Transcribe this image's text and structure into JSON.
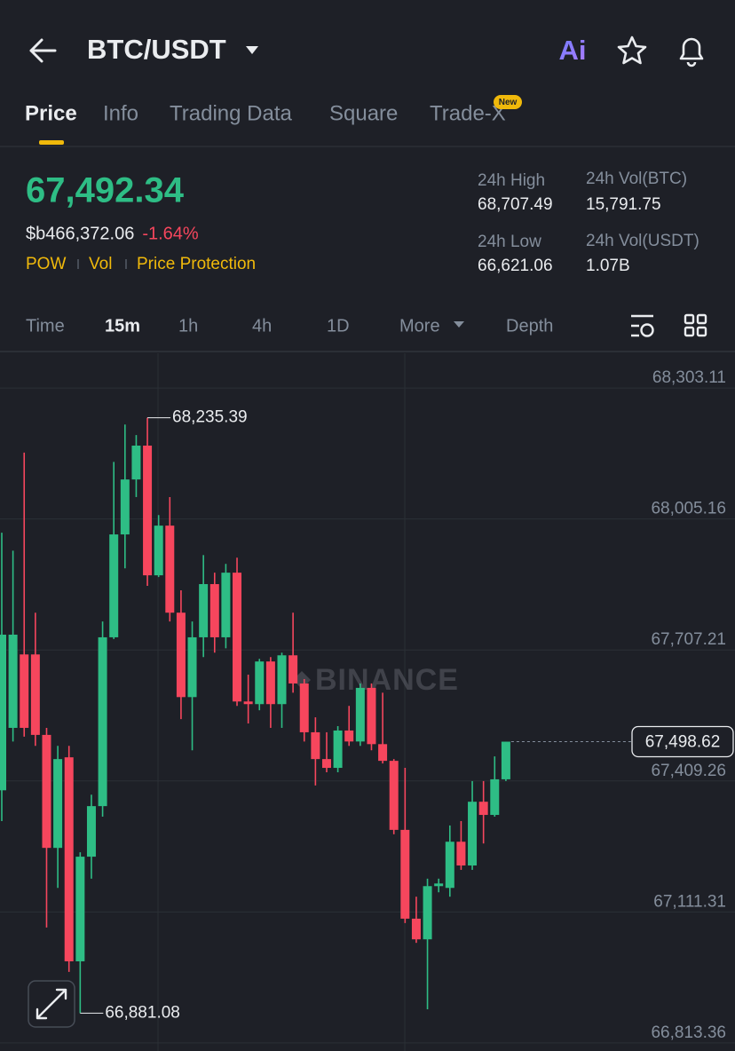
{
  "header": {
    "pair": "BTC/USDT",
    "ai": "Ai"
  },
  "tabs": {
    "items": [
      "Price",
      "Info",
      "Trading Data",
      "Square",
      "Trade-X"
    ],
    "badge": "New"
  },
  "ticker": {
    "price": "67,492.34",
    "fiat": "$b466,372.06",
    "change": "-1.64%",
    "tags": [
      "POW",
      "Vol",
      "Price Protection"
    ],
    "stats": [
      {
        "label": "24h High",
        "value": "68,707.49"
      },
      {
        "label": "24h Vol(BTC)",
        "value": "15,791.75"
      },
      {
        "label": "24h Low",
        "value": "66,621.06"
      },
      {
        "label": "24h Vol(USDT)",
        "value": "1.07B"
      }
    ]
  },
  "intervals": [
    "Time",
    "15m",
    "1h",
    "4h",
    "1D",
    "More",
    "Depth"
  ],
  "chart_data": {
    "type": "candlestick",
    "up_color": "#2ebd85",
    "down_color": "#f6465d",
    "watermark": "BINANCE",
    "ylim": [
      66795,
      68382
    ],
    "yticks": [
      {
        "value": 68303.11,
        "label": "68,303.11"
      },
      {
        "value": 68005.16,
        "label": "68,005.16"
      },
      {
        "value": 67707.21,
        "label": "67,707.21"
      },
      {
        "value": 67409.26,
        "label": "67,409.26"
      },
      {
        "value": 67111.31,
        "label": "67,111.31"
      },
      {
        "value": 66813.36,
        "label": "66,813.36"
      }
    ],
    "grid": true,
    "open": [
      67388,
      67530,
      67697,
      67697,
      67514,
      67257,
      67463,
      66999,
      67237,
      67352,
      67736,
      67970,
      68095,
      68172,
      67877,
      67990,
      67792,
      67600,
      67736,
      67857,
      67736,
      67883,
      67590,
      67584,
      67681,
      67584,
      67695,
      67631,
      67520,
      67459,
      67439,
      67524,
      67499,
      67621,
      67493,
      67455,
      67298,
      67096,
      67049,
      67170,
      67166,
      67271,
      67217,
      67362,
      67332,
      67413
    ],
    "close": [
      67742,
      67742,
      67530,
      67514,
      67257,
      67459,
      66999,
      67237,
      67352,
      67736,
      67970,
      68095,
      68172,
      67877,
      67990,
      67792,
      67600,
      67736,
      67857,
      67736,
      67883,
      67590,
      67584,
      67681,
      67584,
      67695,
      67631,
      67520,
      67459,
      67439,
      67524,
      67499,
      67621,
      67493,
      67455,
      67298,
      67096,
      67049,
      67170,
      67176,
      67271,
      67217,
      67362,
      67332,
      67413,
      67498.62
    ],
    "high": [
      67974,
      67933,
      68156,
      67792,
      67530,
      67489,
      67489,
      67247,
      67378,
      67772,
      68135,
      68220,
      68196,
      68235.39,
      68014,
      68055,
      67843,
      67772,
      67923,
      67883,
      67903,
      67917,
      67651,
      67687,
      67691,
      67701,
      67792,
      67641,
      67554,
      67520,
      67534,
      67580,
      67631,
      67631,
      67610,
      67459,
      67439,
      67146,
      67187,
      67187,
      67308,
      67318,
      67409,
      67409,
      67465,
      67498.62
    ],
    "low": [
      67318,
      67499,
      67510,
      67489,
      67076,
      67166,
      66975,
      66881.08,
      67187,
      67328,
      67732,
      67893,
      68055,
      67853,
      67873,
      67772,
      67550,
      67479,
      67691,
      67701,
      67711,
      67580,
      67540,
      67570,
      67530,
      67530,
      67610,
      67499,
      67399,
      67429,
      67429,
      67489,
      67489,
      67479,
      67449,
      67288,
      67086,
      67041,
      66890,
      67156,
      67146,
      67207,
      67207,
      67267,
      67328,
      67409
    ],
    "annotations": [
      {
        "kind": "high",
        "value": 68235.39,
        "label": "68,235.39"
      },
      {
        "kind": "low",
        "value": 66881.08,
        "label": "66,881.08"
      },
      {
        "kind": "last",
        "value": 67498.62,
        "label": "67,498.62"
      }
    ]
  }
}
